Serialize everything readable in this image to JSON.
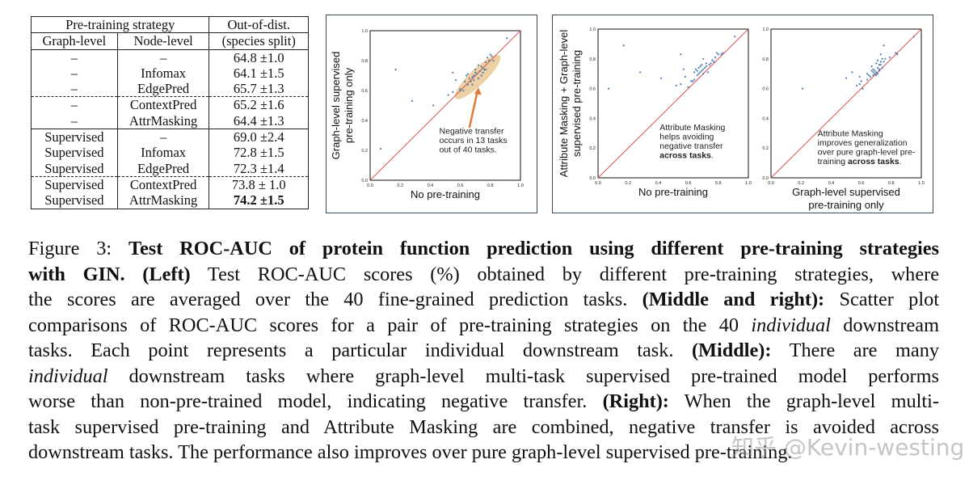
{
  "table": {
    "header_group": "Pre-training strategy",
    "header_metric_line1": "Out-of-dist.",
    "header_metric_line2": "(species split)",
    "col_graph": "Graph-level",
    "col_node": "Node-level",
    "rows": [
      {
        "graph": "–",
        "node": "–",
        "score": "64.8 ±1.0",
        "bold": false,
        "sep": ""
      },
      {
        "graph": "–",
        "node": "Infomax",
        "score": "64.1 ±1.5",
        "bold": false,
        "sep": ""
      },
      {
        "graph": "–",
        "node": "EdgePred",
        "score": "65.7 ±1.3",
        "bold": false,
        "sep": "dash"
      },
      {
        "graph": "–",
        "node": "ContextPred",
        "score": "65.2 ±1.6",
        "bold": false,
        "sep": ""
      },
      {
        "graph": "–",
        "node": "AttrMasking",
        "score": "64.4 ±1.3",
        "bold": false,
        "sep": "solid"
      },
      {
        "graph": "Supervised",
        "node": "–",
        "score": "69.0 ±2.4",
        "bold": false,
        "sep": ""
      },
      {
        "graph": "Supervised",
        "node": "Infomax",
        "score": "72.8 ±1.5",
        "bold": false,
        "sep": ""
      },
      {
        "graph": "Supervised",
        "node": "EdgePred",
        "score": "72.3 ±1.4",
        "bold": false,
        "sep": "dash"
      },
      {
        "graph": "Supervised",
        "node": "ContextPred",
        "score": "73.8 ± 1.0",
        "bold": false,
        "sep": ""
      },
      {
        "graph": "Supervised",
        "node": "AttrMasking",
        "score": "74.2 ±1.5",
        "bold": true,
        "sep": ""
      }
    ]
  },
  "chart_data": [
    {
      "type": "scatter",
      "xlabel": "No pre-training",
      "ylabel": [
        "Graph-level supervised",
        "pre-training only"
      ],
      "xlim": [
        0,
        1
      ],
      "ylim": [
        0,
        1
      ],
      "ticks": [
        "0.0",
        "0.2",
        "0.4",
        "0.6",
        "0.8",
        "1.0"
      ],
      "diagonal_color": "#d9534f",
      "point_color": "#4a7fb0",
      "annotation": [
        "Negative transfer",
        "occurs in 13 tasks",
        "out of 40 tasks."
      ],
      "annotation_bold": "",
      "highlight_color": "#e8c48c",
      "arrow_color": "#e07b39",
      "points": [
        [
          0.07,
          0.21
        ],
        [
          0.17,
          0.74
        ],
        [
          0.28,
          0.53
        ],
        [
          0.42,
          0.5
        ],
        [
          0.52,
          0.57
        ],
        [
          0.55,
          0.59
        ],
        [
          0.55,
          0.72
        ],
        [
          0.57,
          0.67
        ],
        [
          0.6,
          0.61
        ],
        [
          0.62,
          0.6
        ],
        [
          0.64,
          0.7
        ],
        [
          0.65,
          0.71
        ],
        [
          0.65,
          0.64
        ],
        [
          0.67,
          0.66
        ],
        [
          0.68,
          0.64
        ],
        [
          0.69,
          0.7
        ],
        [
          0.7,
          0.72
        ],
        [
          0.7,
          0.74
        ],
        [
          0.72,
          0.77
        ],
        [
          0.72,
          0.68
        ],
        [
          0.73,
          0.73
        ],
        [
          0.74,
          0.7
        ],
        [
          0.75,
          0.75
        ],
        [
          0.76,
          0.74
        ],
        [
          0.77,
          0.79
        ],
        [
          0.78,
          0.82
        ],
        [
          0.8,
          0.84
        ],
        [
          0.81,
          0.83
        ],
        [
          0.82,
          0.8
        ],
        [
          0.91,
          0.95
        ],
        [
          0.66,
          0.68
        ],
        [
          0.63,
          0.66
        ],
        [
          0.71,
          0.71
        ],
        [
          0.68,
          0.69
        ],
        [
          0.75,
          0.72
        ],
        [
          0.74,
          0.76
        ],
        [
          0.79,
          0.8
        ],
        [
          0.69,
          0.67
        ],
        [
          0.77,
          0.74
        ],
        [
          0.6,
          0.6
        ]
      ]
    },
    {
      "type": "scatter",
      "xlabel": "No pre-training",
      "ylabel": [
        "Attribute Masking + Graph-level",
        "supervised pre-training"
      ],
      "xlim": [
        0,
        1
      ],
      "ylim": [
        0,
        1
      ],
      "ticks": [
        "0.0",
        "0.2",
        "0.4",
        "0.6",
        "0.8",
        "1.0"
      ],
      "diagonal_color": "#d9534f",
      "point_color": "#4a7fb0",
      "annotation": [
        "Attribute Masking",
        "helps avoiding",
        "negative transfer"
      ],
      "annotation_bold": "across tasks",
      "points": [
        [
          0.07,
          0.6
        ],
        [
          0.17,
          0.89
        ],
        [
          0.28,
          0.71
        ],
        [
          0.42,
          0.67
        ],
        [
          0.52,
          0.62
        ],
        [
          0.55,
          0.63
        ],
        [
          0.55,
          0.83
        ],
        [
          0.57,
          0.73
        ],
        [
          0.58,
          0.68
        ],
        [
          0.6,
          0.61
        ],
        [
          0.62,
          0.65
        ],
        [
          0.64,
          0.66
        ],
        [
          0.64,
          0.71
        ],
        [
          0.65,
          0.73
        ],
        [
          0.66,
          0.69
        ],
        [
          0.67,
          0.7
        ],
        [
          0.68,
          0.75
        ],
        [
          0.69,
          0.76
        ],
        [
          0.69,
          0.72
        ],
        [
          0.7,
          0.8
        ],
        [
          0.7,
          0.73
        ],
        [
          0.71,
          0.74
        ],
        [
          0.72,
          0.77
        ],
        [
          0.73,
          0.71
        ],
        [
          0.74,
          0.76
        ],
        [
          0.76,
          0.79
        ],
        [
          0.77,
          0.78
        ],
        [
          0.78,
          0.81
        ],
        [
          0.79,
          0.84
        ],
        [
          0.8,
          0.83
        ],
        [
          0.82,
          0.83
        ],
        [
          0.83,
          0.84
        ],
        [
          0.91,
          0.95
        ],
        [
          0.68,
          0.71
        ],
        [
          0.66,
          0.72
        ],
        [
          0.7,
          0.7
        ],
        [
          0.72,
          0.75
        ],
        [
          0.63,
          0.65
        ],
        [
          0.75,
          0.77
        ],
        [
          0.67,
          0.74
        ]
      ]
    },
    {
      "type": "scatter",
      "xlabel": [
        "Graph-level supervised",
        "pre-training only"
      ],
      "ylabel": [],
      "xlim": [
        0,
        1
      ],
      "ylim": [
        0,
        1
      ],
      "ticks": [
        "0.0",
        "0.2",
        "0.4",
        "0.6",
        "0.8",
        "1.0"
      ],
      "diagonal_color": "#d9534f",
      "point_color": "#4a7fb0",
      "annotation": [
        "Attribute Masking",
        "improves generalization",
        "over pure graph-level pre-"
      ],
      "annotation_bold_prefix": "training ",
      "annotation_bold": "across tasks",
      "points": [
        [
          0.21,
          0.6
        ],
        [
          0.5,
          0.67
        ],
        [
          0.54,
          0.71
        ],
        [
          0.57,
          0.62
        ],
        [
          0.59,
          0.68
        ],
        [
          0.59,
          0.63
        ],
        [
          0.6,
          0.65
        ],
        [
          0.61,
          0.6
        ],
        [
          0.64,
          0.7
        ],
        [
          0.64,
          0.66
        ],
        [
          0.67,
          0.75
        ],
        [
          0.68,
          0.73
        ],
        [
          0.68,
          0.71
        ],
        [
          0.69,
          0.72
        ],
        [
          0.7,
          0.77
        ],
        [
          0.7,
          0.69
        ],
        [
          0.71,
          0.79
        ],
        [
          0.71,
          0.74
        ],
        [
          0.72,
          0.76
        ],
        [
          0.72,
          0.72
        ],
        [
          0.73,
          0.83
        ],
        [
          0.73,
          0.76
        ],
        [
          0.74,
          0.8
        ],
        [
          0.74,
          0.74
        ],
        [
          0.75,
          0.89
        ],
        [
          0.75,
          0.78
        ],
        [
          0.79,
          0.81
        ],
        [
          0.83,
          0.84
        ],
        [
          0.84,
          0.83
        ],
        [
          0.95,
          0.95
        ],
        [
          0.69,
          0.7
        ],
        [
          0.7,
          0.71
        ],
        [
          0.72,
          0.73
        ],
        [
          0.66,
          0.68
        ],
        [
          0.67,
          0.72
        ],
        [
          0.71,
          0.7
        ],
        [
          0.73,
          0.78
        ],
        [
          0.68,
          0.69
        ],
        [
          0.76,
          0.8
        ],
        [
          0.65,
          0.69
        ]
      ]
    }
  ],
  "caption": {
    "lines": [
      [
        {
          "t": "Figure 3: ",
          "s": ""
        },
        {
          "t": "Test ROC-AUC of protein function prediction using different pre-training strategies",
          "s": "b"
        }
      ],
      [
        {
          "t": "with GIN. (Left)",
          "s": "b"
        },
        {
          "t": " Test ROC-AUC scores (%) obtained by different pre-training strategies, where",
          "s": ""
        }
      ],
      [
        {
          "t": "the scores are averaged over the 40 fine-grained prediction tasks. ",
          "s": ""
        },
        {
          "t": "(Middle and right):",
          "s": "b"
        },
        {
          "t": " Scatter plot",
          "s": ""
        }
      ],
      [
        {
          "t": "comparisons of ROC-AUC scores for a pair of pre-training strategies on the 40 ",
          "s": ""
        },
        {
          "t": "individual",
          "s": "i"
        },
        {
          "t": " downstream",
          "s": ""
        }
      ],
      [
        {
          "t": "tasks. Each point represents a particular individual downstream task. ",
          "s": ""
        },
        {
          "t": "(Middle):",
          "s": "b"
        },
        {
          "t": " There are many",
          "s": ""
        }
      ],
      [
        {
          "t": "individual",
          "s": "i"
        },
        {
          "t": " downstream tasks where graph-level multi-task supervised pre-trained model performs",
          "s": ""
        }
      ],
      [
        {
          "t": "worse than non-pre-trained model, indicating negative transfer. ",
          "s": ""
        },
        {
          "t": "(Right):",
          "s": "b"
        },
        {
          "t": " When the graph-level multi-",
          "s": ""
        }
      ],
      [
        {
          "t": "task supervised pre-training and Attribute Masking are combined, negative transfer is avoided across",
          "s": ""
        }
      ],
      [
        {
          "t": "downstream tasks. The performance also improves over pure graph-level supervised pre-training.",
          "s": ""
        }
      ]
    ]
  },
  "watermark": "知乎 @Kevin-westing"
}
